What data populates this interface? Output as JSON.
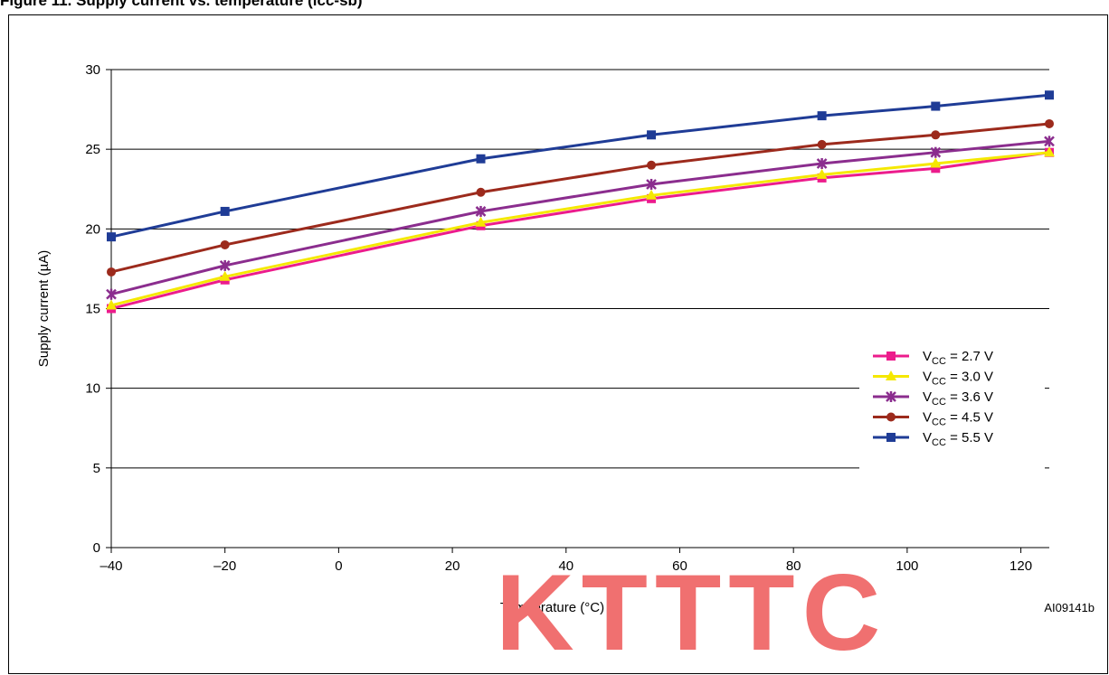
{
  "figure_caption": "Figure 11. Supply current vs. temperature (icc-sb)",
  "figure_id": "AI09141b",
  "watermark": "KTTTC",
  "chart_data": {
    "type": "line",
    "title": "",
    "xlabel": "Temperature (°C)",
    "ylabel": "Supply current (µA)",
    "xlim": [
      -40,
      125
    ],
    "ylim": [
      0,
      30
    ],
    "xticks": [
      -40,
      -20,
      0,
      20,
      40,
      60,
      80,
      100,
      120
    ],
    "xtick_labels": [
      "–40",
      "–20",
      "0",
      "20",
      "40",
      "60",
      "80",
      "100",
      "120"
    ],
    "yticks": [
      0,
      5,
      10,
      15,
      20,
      25,
      30
    ],
    "ytick_labels": [
      "0",
      "5",
      "10",
      "15",
      "20",
      "25",
      "30"
    ],
    "grid": "horizontal",
    "legend": "right",
    "x": [
      -40,
      -20,
      25,
      55,
      85,
      105,
      125
    ],
    "series": [
      {
        "name": "VCC = 2.7 V",
        "label_main": "V",
        "label_sub": "CC",
        "label_rest": " = 2.7 V",
        "marker": "square",
        "color": "#ec1c8c",
        "values": [
          15.0,
          16.8,
          20.2,
          21.9,
          23.2,
          23.8,
          24.8
        ]
      },
      {
        "name": "VCC = 3.0 V",
        "label_main": "V",
        "label_sub": "CC",
        "label_rest": " = 3.0 V",
        "marker": "triangle",
        "color": "#f5e800",
        "values": [
          15.2,
          17.0,
          20.4,
          22.1,
          23.4,
          24.1,
          24.8
        ]
      },
      {
        "name": "VCC = 3.6 V",
        "label_main": "V",
        "label_sub": "CC",
        "label_rest": " = 3.6 V",
        "marker": "star",
        "color": "#8b2d8e",
        "values": [
          15.9,
          17.7,
          21.1,
          22.8,
          24.1,
          24.8,
          25.5
        ]
      },
      {
        "name": "VCC = 4.5 V",
        "label_main": "V",
        "label_sub": "CC",
        "label_rest": " = 4.5 V",
        "marker": "circle",
        "color": "#9c2a1c",
        "values": [
          17.3,
          19.0,
          22.3,
          24.0,
          25.3,
          25.9,
          26.6
        ]
      },
      {
        "name": "VCC = 5.5 V",
        "label_main": "V",
        "label_sub": "CC",
        "label_rest": " = 5.5 V",
        "marker": "square",
        "color": "#1f3c96",
        "values": [
          19.5,
          21.1,
          24.4,
          25.9,
          27.1,
          27.7,
          28.4
        ]
      }
    ]
  }
}
